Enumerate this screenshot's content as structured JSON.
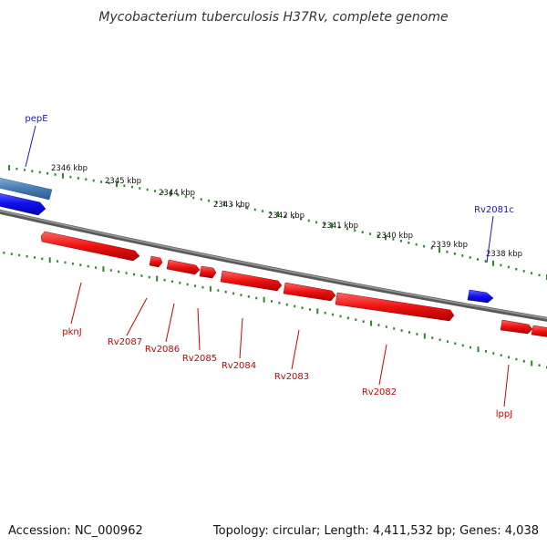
{
  "title": "Mycobacterium tuberculosis H37Rv, complete genome",
  "footer": {
    "accession": "Accession: NC_000962",
    "summary": "Topology: circular; Length: 4,411,532 bp; Genes: 4,038"
  },
  "colors": {
    "forward": "#ee1111",
    "reverse": "#1111ee",
    "highlight": "#4a7fb5",
    "backbone": "#777777",
    "ticks": "#2a8a2a",
    "label_forward": "#cc0000",
    "label_reverse": "#1a1aaa"
  },
  "scale": {
    "unit": "kbp",
    "ticks": [
      "2346 kbp",
      "2345 kbp",
      "2344 kbp",
      "2343 kbp",
      "2342 kbp",
      "2341 kbp",
      "2340 kbp",
      "2339 kbp",
      "2338 kbp"
    ]
  },
  "genes": [
    {
      "label": "pepE",
      "strand": "reverse",
      "color": "highlight"
    },
    {
      "label": "Rv2081c",
      "strand": "reverse"
    },
    {
      "label": "pknJ",
      "strand": "forward"
    },
    {
      "label": "Rv2087",
      "strand": "forward"
    },
    {
      "label": "Rv2086",
      "strand": "forward"
    },
    {
      "label": "Rv2085",
      "strand": "forward"
    },
    {
      "label": "Rv2084",
      "strand": "forward"
    },
    {
      "label": "Rv2083",
      "strand": "forward"
    },
    {
      "label": "Rv2082",
      "strand": "forward"
    },
    {
      "label": "lppJ",
      "strand": "forward"
    }
  ]
}
